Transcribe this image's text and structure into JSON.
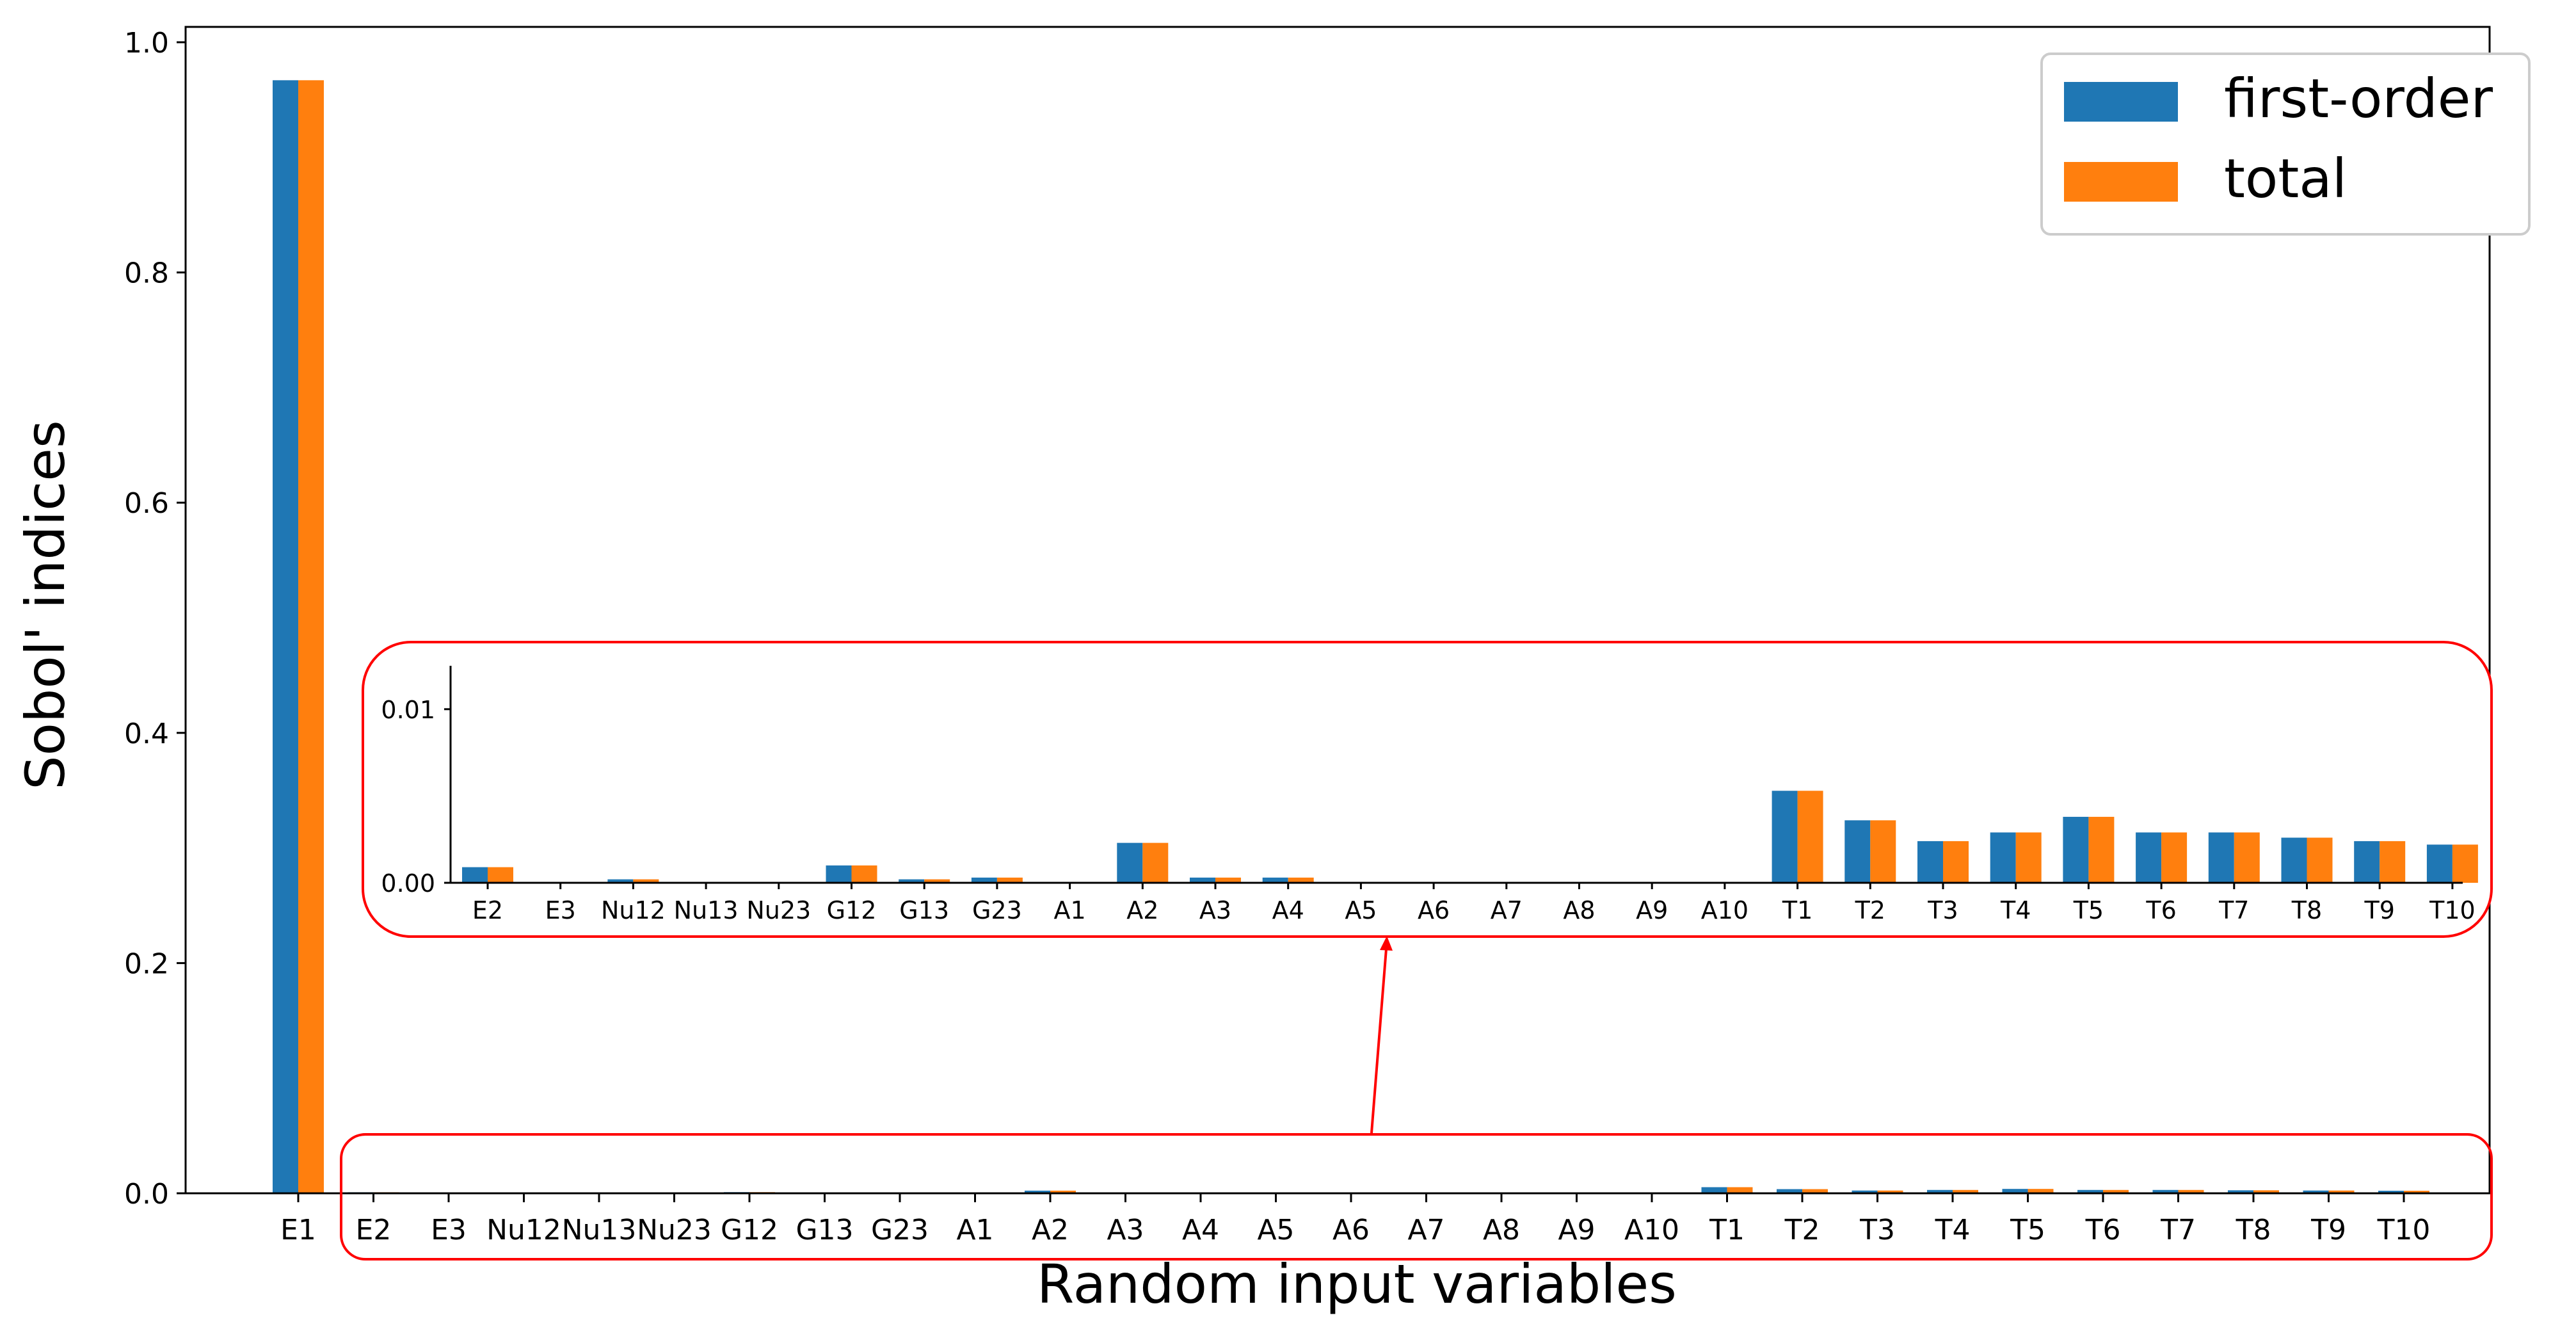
{
  "chart_data": {
    "type": "bar",
    "title": "",
    "xlabel": "Random input variables",
    "ylabel": "Sobol' indices",
    "ylim": [
      0,
      1.0
    ],
    "yticks": [
      "0.0",
      "0.2",
      "0.4",
      "0.6",
      "0.8",
      "1.0"
    ],
    "ytick_values": [
      0,
      0.2,
      0.4,
      0.6,
      0.8,
      1.0
    ],
    "grid": false,
    "legend_position": "top-right",
    "colors": {
      "first-order": "#1f77b4",
      "total": "#ff7f0e",
      "highlight": "#ff0000"
    },
    "categories": [
      "E1",
      "E2",
      "E3",
      "Nu12",
      "Nu13",
      "Nu23",
      "G12",
      "G13",
      "G23",
      "A1",
      "A2",
      "A3",
      "A4",
      "A5",
      "A6",
      "A7",
      "A8",
      "A9",
      "A10",
      "T1",
      "T2",
      "T3",
      "T4",
      "T5",
      "T6",
      "T7",
      "T8",
      "T9",
      "T10"
    ],
    "series": [
      {
        "name": "first-order",
        "values": [
          0.967,
          0.0009,
          0.0,
          0.0002,
          0.0,
          0.0,
          0.001,
          0.0002,
          0.0003,
          0.0,
          0.0023,
          0.0003,
          0.0003,
          0.0,
          0.0,
          0.0,
          0.0,
          0.0,
          0.0,
          0.0053,
          0.0036,
          0.0024,
          0.0029,
          0.0038,
          0.0029,
          0.0029,
          0.0026,
          0.0024,
          0.0022
        ]
      },
      {
        "name": "total",
        "values": [
          0.967,
          0.0009,
          0.0,
          0.0002,
          0.0,
          0.0,
          0.001,
          0.0002,
          0.0003,
          0.0,
          0.0023,
          0.0003,
          0.0003,
          0.0,
          0.0,
          0.0,
          0.0,
          0.0,
          0.0,
          0.0053,
          0.0036,
          0.0024,
          0.0029,
          0.0038,
          0.0029,
          0.0029,
          0.0026,
          0.0024,
          0.0022
        ]
      }
    ],
    "inset": {
      "ylim": [
        0,
        0.0125
      ],
      "yticks": [
        "0.00",
        "0.01"
      ],
      "ytick_values": [
        0,
        0.01
      ],
      "categories": [
        "E2",
        "E3",
        "Nu12",
        "Nu13",
        "Nu23",
        "G12",
        "G13",
        "G23",
        "A1",
        "A2",
        "A3",
        "A4",
        "A5",
        "A6",
        "A7",
        "A8",
        "A9",
        "A10",
        "T1",
        "T2",
        "T3",
        "T4",
        "T5",
        "T6",
        "T7",
        "T8",
        "T9",
        "T10"
      ]
    }
  }
}
